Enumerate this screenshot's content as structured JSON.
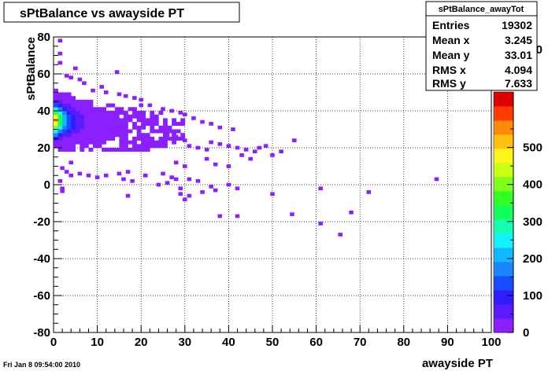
{
  "chart_data": {
    "type": "heatmap",
    "title": "sPtBalance vs awayside PT",
    "xlabel": "awayside PT",
    "ylabel": "sPtBalance",
    "xlim": [
      0,
      100
    ],
    "ylim": [
      -80,
      80
    ],
    "x_ticks": [
      "0",
      "10",
      "20",
      "30",
      "40",
      "50",
      "60",
      "70",
      "80",
      "90",
      "100"
    ],
    "y_ticks": [
      "-80",
      "-60",
      "-40",
      "-20",
      "0",
      "20",
      "40",
      "60",
      "80"
    ],
    "grid": true,
    "colorbar": {
      "range": [
        0,
        650
      ],
      "ticks": [
        "0",
        "100",
        "200",
        "300",
        "400",
        "500"
      ],
      "top_partial_tick": "600"
    },
    "stats": {
      "title": "sPtBalance_awayTot",
      "rows": [
        {
          "label": "Entries",
          "value": "19302"
        },
        {
          "label": "Mean x",
          "value": "3.245"
        },
        {
          "label": "Mean y",
          "value": "33.01"
        },
        {
          "label": "RMS x",
          "value": "4.094"
        },
        {
          "label": "RMS y",
          "value": "7.633"
        }
      ]
    },
    "timestamp": "Fri Jan  8 09:54:00 2010",
    "sparse_points": [
      [
        1.5,
        78
      ],
      [
        1.5,
        71
      ],
      [
        1.5,
        66
      ],
      [
        5,
        63
      ],
      [
        14.5,
        61
      ],
      [
        3,
        59
      ],
      [
        4,
        58
      ],
      [
        6,
        57
      ],
      [
        7,
        55
      ],
      [
        9,
        51
      ],
      [
        11,
        53
      ],
      [
        12,
        50
      ],
      [
        15,
        49
      ],
      [
        16.5,
        48
      ],
      [
        18.5,
        47
      ],
      [
        20,
        46
      ],
      [
        20,
        43
      ],
      [
        22,
        43
      ],
      [
        25,
        41
      ],
      [
        27,
        40
      ],
      [
        29,
        39
      ],
      [
        30,
        38
      ],
      [
        32,
        36
      ],
      [
        34,
        34
      ],
      [
        36,
        33
      ],
      [
        38,
        31
      ],
      [
        41,
        30
      ],
      [
        26,
        27
      ],
      [
        28,
        26
      ],
      [
        30,
        24
      ],
      [
        31,
        21
      ],
      [
        33,
        20
      ],
      [
        35,
        19
      ],
      [
        36,
        23
      ],
      [
        38,
        22
      ],
      [
        40,
        21
      ],
      [
        42,
        20
      ],
      [
        44,
        19
      ],
      [
        46,
        18
      ],
      [
        47,
        20
      ],
      [
        48.5,
        21
      ],
      [
        55,
        24
      ],
      [
        43,
        16
      ],
      [
        45,
        14
      ],
      [
        50,
        16
      ],
      [
        52,
        18
      ],
      [
        35,
        14
      ],
      [
        37,
        11
      ],
      [
        40,
        10
      ],
      [
        28,
        12
      ],
      [
        30,
        10
      ],
      [
        25,
        6
      ],
      [
        27,
        4
      ],
      [
        28,
        3
      ],
      [
        31,
        3
      ],
      [
        24,
        0
      ],
      [
        26,
        1
      ],
      [
        29,
        -2
      ],
      [
        33,
        2
      ],
      [
        36,
        -1
      ],
      [
        40,
        0
      ],
      [
        42,
        -2
      ],
      [
        29,
        -5
      ],
      [
        31,
        -6
      ],
      [
        34,
        -4
      ],
      [
        37,
        -3
      ],
      [
        21,
        5
      ],
      [
        17,
        7
      ],
      [
        15,
        6
      ],
      [
        12,
        5
      ],
      [
        10,
        4
      ],
      [
        8,
        5
      ],
      [
        6,
        6
      ],
      [
        4,
        5
      ],
      [
        3,
        7
      ],
      [
        2,
        9
      ],
      [
        4,
        12
      ],
      [
        16,
        3
      ],
      [
        18,
        2
      ],
      [
        1.5,
        2
      ],
      [
        2,
        -2
      ],
      [
        2,
        -3.5
      ],
      [
        17,
        -6
      ],
      [
        30,
        -8
      ],
      [
        38,
        -17
      ],
      [
        42,
        -17
      ],
      [
        54.5,
        -16
      ],
      [
        61,
        -21
      ],
      [
        65.5,
        -27
      ],
      [
        68,
        -15
      ],
      [
        72,
        -4
      ],
      [
        61,
        -2
      ],
      [
        50,
        -5
      ],
      [
        87.5,
        3
      ]
    ]
  }
}
